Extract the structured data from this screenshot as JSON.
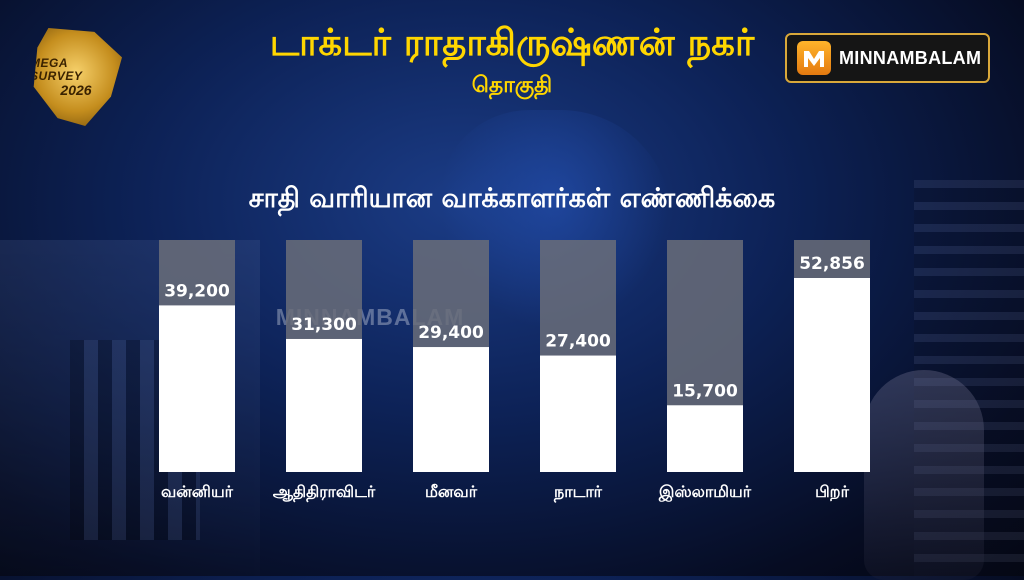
{
  "header": {
    "title": "டாக்டர் ராதாகிருஷ்ணன் நகர்",
    "subtitle": "தொகுதி"
  },
  "logo": {
    "line1": "MEGA SURVEY",
    "line2": "2026"
  },
  "brand": {
    "name": "MINNAMBALAM",
    "icon": "minnambalam-m-logo-icon",
    "accent": "#f39a1c"
  },
  "watermark": "MINNAMBALAM",
  "chart_data": {
    "type": "bar",
    "title": "சாதி வாரியான வாக்காளர்கள்  எண்ணிக்கை",
    "categories": [
      "வன்னியர்",
      "ஆதிதிராவிடர்",
      "மீனவர்",
      "நாடார்",
      "இஸ்லாமியர்",
      "பிறர்"
    ],
    "values": [
      39200,
      31300,
      29400,
      27400,
      15700,
      52856
    ],
    "value_labels": [
      "39,200",
      "31,300",
      "29,400",
      "27,400",
      "15,700",
      "52,856"
    ],
    "ylim": [
      0,
      60000
    ],
    "grid": false,
    "colors": {
      "bar": "#ffffff",
      "track": "#6a6d79",
      "label_text": "#ffffff"
    }
  }
}
